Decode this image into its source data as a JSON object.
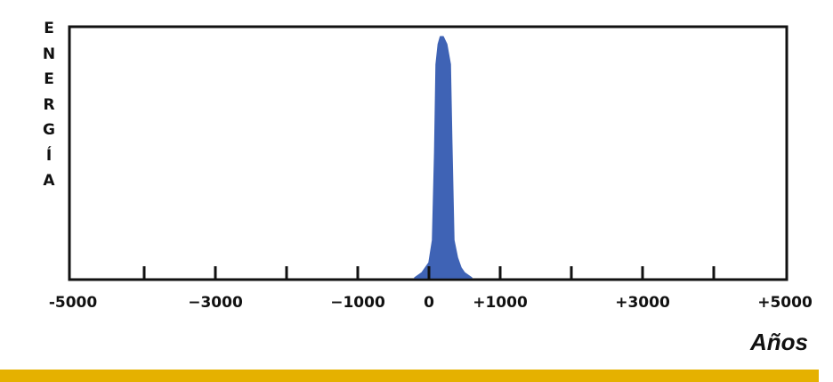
{
  "chart_data": {
    "type": "area",
    "title": "",
    "ylabel": "ENERGÍA",
    "ylabel_letters": [
      "E",
      "N",
      "E",
      "R",
      "G",
      "Í",
      "A"
    ],
    "xlabel": "Años",
    "xlim": [
      -5000,
      5000
    ],
    "ylim": [
      0,
      1
    ],
    "grid": false,
    "ticks": [
      -4000,
      -3000,
      -2000,
      -1000,
      0,
      1000,
      2000,
      3000,
      4000
    ],
    "tick_labels": [
      {
        "value": -5000,
        "text": "-5000"
      },
      {
        "value": -3000,
        "text": "−3000"
      },
      {
        "value": -1000,
        "text": "−1000"
      },
      {
        "value": 0,
        "text": "0"
      },
      {
        "value": 1000,
        "text": "+1000"
      },
      {
        "value": 3000,
        "text": "+3000"
      },
      {
        "value": 5000,
        "text": "+5000"
      }
    ],
    "series": [
      {
        "x": [
          -200,
          -100,
          0,
          50,
          80,
          100,
          130,
          160,
          200,
          250,
          300,
          320,
          350,
          400,
          450,
          500,
          600
        ],
        "y": [
          0,
          0.02,
          0.06,
          0.15,
          0.5,
          0.85,
          0.93,
          0.96,
          0.96,
          0.93,
          0.85,
          0.55,
          0.15,
          0.08,
          0.04,
          0.02,
          0
        ]
      }
    ]
  },
  "colors": {
    "fill": "#3f63b5",
    "axis": "#111111",
    "bottom_bar": "#e5b100"
  }
}
